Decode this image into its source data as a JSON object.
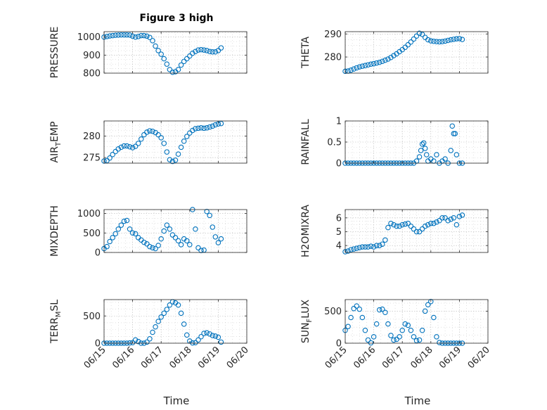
{
  "figure": {
    "title": "Figure 3 high",
    "xlabel": "Time"
  },
  "style": {
    "marker_color": "#0072bd",
    "axis_color": "#262626",
    "grid_color": "#b0b0b0"
  },
  "chart_data": [
    {
      "type": "scatter",
      "ylabel_main": "PRESSURE",
      "ylabel_sub": "",
      "xlim": [
        0,
        5
      ],
      "ylim": [
        800,
        1030
      ],
      "yticks": [
        800,
        900,
        1000
      ],
      "ytick_labels": [
        "800",
        "900",
        "1000"
      ],
      "xtick_labels": [
        "06/15",
        "06/16",
        "06/17",
        "06/18",
        "06/19",
        "06/20"
      ],
      "x": [
        0.0,
        0.1,
        0.2,
        0.3,
        0.4,
        0.5,
        0.6,
        0.7,
        0.8,
        0.9,
        1.0,
        1.1,
        1.2,
        1.3,
        1.4,
        1.5,
        1.6,
        1.7,
        1.8,
        1.9,
        2.0,
        2.1,
        2.2,
        2.3,
        2.4,
        2.5,
        2.6,
        2.7,
        2.8,
        2.9,
        3.0,
        3.1,
        3.2,
        3.3,
        3.4,
        3.5,
        3.6,
        3.7,
        3.8,
        3.9,
        4.0,
        4.1
      ],
      "y": [
        1000,
        1003,
        1006,
        1008,
        1010,
        1011,
        1012,
        1012,
        1012,
        1011,
        1005,
        1000,
        1003,
        1008,
        1008,
        1005,
        998,
        980,
        950,
        925,
        905,
        880,
        850,
        820,
        805,
        808,
        820,
        845,
        865,
        880,
        895,
        910,
        920,
        928,
        930,
        928,
        925,
        920,
        918,
        918,
        925,
        940
      ]
    },
    {
      "type": "scatter",
      "ylabel_main": "THETA",
      "ylabel_sub": "",
      "xlim": [
        0,
        5
      ],
      "ylim": [
        273,
        291
      ],
      "yticks": [
        280,
        290
      ],
      "ytick_labels": [
        "280",
        "290"
      ],
      "xtick_labels": [
        "06/15",
        "06/16",
        "06/17",
        "06/18",
        "06/19",
        "06/20"
      ],
      "x": [
        0.0,
        0.1,
        0.2,
        0.3,
        0.4,
        0.5,
        0.6,
        0.7,
        0.8,
        0.9,
        1.0,
        1.1,
        1.2,
        1.3,
        1.4,
        1.5,
        1.6,
        1.7,
        1.8,
        1.9,
        2.0,
        2.1,
        2.2,
        2.3,
        2.4,
        2.5,
        2.6,
        2.7,
        2.8,
        2.9,
        3.0,
        3.1,
        3.2,
        3.3,
        3.4,
        3.5,
        3.6,
        3.7,
        3.8,
        3.9,
        4.0,
        4.1
      ],
      "y": [
        273.8,
        273.9,
        274.3,
        274.8,
        275.3,
        275.7,
        276.0,
        276.3,
        276.6,
        276.9,
        277.1,
        277.4,
        277.7,
        278.1,
        278.6,
        279.1,
        279.8,
        280.6,
        281.4,
        282.3,
        283.2,
        284.2,
        285.3,
        286.5,
        287.8,
        289.1,
        290.3,
        289.8,
        288.5,
        287.5,
        287.0,
        286.8,
        286.7,
        286.6,
        286.7,
        286.9,
        287.2,
        287.5,
        287.7,
        287.9,
        288.0,
        287.6
      ]
    },
    {
      "type": "scatter",
      "ylabel_main": "AIR",
      "ylabel_sub": "T",
      "ylabel_tail": "EMP",
      "xlim": [
        0,
        5
      ],
      "ylim": [
        273.7,
        283.5
      ],
      "yticks": [
        275,
        280
      ],
      "ytick_labels": [
        "275",
        "280"
      ],
      "xtick_labels": [
        "06/15",
        "06/16",
        "06/17",
        "06/18",
        "06/19",
        "06/20"
      ],
      "x": [
        0.0,
        0.1,
        0.2,
        0.3,
        0.4,
        0.5,
        0.6,
        0.7,
        0.8,
        0.9,
        1.0,
        1.1,
        1.2,
        1.3,
        1.4,
        1.5,
        1.6,
        1.7,
        1.8,
        1.9,
        2.0,
        2.1,
        2.2,
        2.3,
        2.4,
        2.5,
        2.6,
        2.7,
        2.8,
        2.9,
        3.0,
        3.1,
        3.2,
        3.3,
        3.4,
        3.5,
        3.6,
        3.7,
        3.8,
        3.9,
        4.0,
        4.1
      ],
      "y": [
        274.2,
        274.3,
        274.9,
        275.7,
        276.4,
        277.0,
        277.4,
        277.7,
        277.7,
        277.5,
        277.3,
        277.6,
        278.3,
        279.3,
        280.3,
        280.9,
        281.2,
        281.1,
        280.8,
        280.3,
        279.6,
        278.3,
        276.3,
        274.5,
        274.1,
        274.4,
        275.8,
        277.4,
        278.8,
        279.9,
        280.7,
        281.3,
        281.7,
        281.8,
        281.9,
        281.8,
        281.9,
        282.1,
        282.3,
        282.6,
        282.8,
        282.9
      ]
    },
    {
      "type": "scatter",
      "ylabel_main": "RAINFALL",
      "ylabel_sub": "",
      "xlim": [
        0,
        5
      ],
      "ylim": [
        0,
        1
      ],
      "yticks": [
        0,
        0.5,
        1
      ],
      "ytick_labels": [
        "0",
        "0.5",
        "1"
      ],
      "xtick_labels": [
        "06/15",
        "06/16",
        "06/17",
        "06/18",
        "06/19",
        "06/20"
      ],
      "x": [
        0.0,
        0.1,
        0.2,
        0.3,
        0.4,
        0.5,
        0.6,
        0.7,
        0.8,
        0.9,
        1.0,
        1.1,
        1.2,
        1.3,
        1.4,
        1.5,
        1.6,
        1.7,
        1.8,
        1.9,
        2.0,
        2.1,
        2.2,
        2.3,
        2.4,
        2.5,
        2.6,
        2.65,
        2.7,
        2.75,
        2.8,
        2.85,
        2.9,
        3.0,
        3.1,
        3.2,
        3.3,
        3.4,
        3.5,
        3.6,
        3.7,
        3.75,
        3.8,
        3.85,
        3.9,
        4.0,
        4.1
      ],
      "y": [
        0,
        0,
        0,
        0,
        0,
        0,
        0,
        0,
        0,
        0,
        0,
        0,
        0,
        0,
        0,
        0,
        0,
        0,
        0,
        0,
        0,
        0,
        0,
        0,
        0,
        0.05,
        0.15,
        0.3,
        0.45,
        0.48,
        0.35,
        0.2,
        0.05,
        0.1,
        0.05,
        0.2,
        0,
        0.05,
        0.1,
        0,
        0.3,
        0.88,
        0.7,
        0.7,
        0.2,
        0,
        0
      ]
    },
    {
      "type": "scatter",
      "ylabel_main": "MIXDEPTH",
      "ylabel_sub": "",
      "xlim": [
        0,
        5
      ],
      "ylim": [
        0,
        1100
      ],
      "yticks": [
        0,
        500,
        1000
      ],
      "ytick_labels": [
        "0",
        "500",
        "1000"
      ],
      "xtick_labels": [
        "06/15",
        "06/16",
        "06/17",
        "06/18",
        "06/19",
        "06/20"
      ],
      "x": [
        0.0,
        0.1,
        0.2,
        0.3,
        0.4,
        0.5,
        0.6,
        0.7,
        0.8,
        0.9,
        1.0,
        1.1,
        1.2,
        1.3,
        1.4,
        1.5,
        1.6,
        1.7,
        1.8,
        1.9,
        2.0,
        2.1,
        2.2,
        2.3,
        2.4,
        2.5,
        2.6,
        2.7,
        2.8,
        2.9,
        3.0,
        3.1,
        3.2,
        3.3,
        3.4,
        3.5,
        3.6,
        3.7,
        3.8,
        3.9,
        4.0,
        4.1
      ],
      "y": [
        100,
        150,
        280,
        380,
        480,
        600,
        700,
        800,
        820,
        600,
        500,
        480,
        380,
        320,
        260,
        220,
        150,
        120,
        100,
        180,
        350,
        550,
        700,
        600,
        450,
        380,
        300,
        200,
        350,
        300,
        200,
        1100,
        600,
        120,
        50,
        60,
        1050,
        950,
        650,
        400,
        250,
        350
      ]
    },
    {
      "type": "scatter",
      "ylabel_main": "H2OMIXRA",
      "ylabel_sub": "",
      "xlim": [
        0,
        5
      ],
      "ylim": [
        3.5,
        6.6
      ],
      "yticks": [
        4,
        5,
        6
      ],
      "ytick_labels": [
        "4",
        "5",
        "6"
      ],
      "xtick_labels": [
        "06/15",
        "06/16",
        "06/17",
        "06/18",
        "06/19",
        "06/20"
      ],
      "x": [
        0.0,
        0.1,
        0.2,
        0.3,
        0.4,
        0.5,
        0.6,
        0.7,
        0.8,
        0.9,
        1.0,
        1.1,
        1.2,
        1.3,
        1.4,
        1.5,
        1.6,
        1.7,
        1.8,
        1.9,
        2.0,
        2.1,
        2.2,
        2.3,
        2.4,
        2.5,
        2.6,
        2.7,
        2.8,
        2.9,
        3.0,
        3.1,
        3.2,
        3.3,
        3.4,
        3.5,
        3.6,
        3.7,
        3.8,
        3.9,
        4.0,
        4.1
      ],
      "y": [
        3.55,
        3.6,
        3.7,
        3.75,
        3.8,
        3.85,
        3.9,
        3.9,
        3.9,
        3.95,
        3.9,
        4.0,
        4.0,
        4.1,
        4.4,
        5.3,
        5.6,
        5.5,
        5.4,
        5.4,
        5.5,
        5.55,
        5.6,
        5.4,
        5.2,
        5.0,
        5.0,
        5.2,
        5.4,
        5.5,
        5.6,
        5.6,
        5.7,
        5.8,
        6.0,
        6.0,
        5.8,
        5.9,
        6.0,
        5.5,
        6.1,
        6.2
      ]
    },
    {
      "type": "scatter",
      "ylabel_main": "TERR",
      "ylabel_sub": "M",
      "ylabel_tail": "SL",
      "xlim": [
        0,
        5
      ],
      "ylim": [
        0,
        800
      ],
      "yticks": [
        0,
        500
      ],
      "ytick_labels": [
        "0",
        "500"
      ],
      "xtick_labels": [
        "06/15",
        "06/16",
        "06/17",
        "06/18",
        "06/19",
        "06/20"
      ],
      "x": [
        0.0,
        0.1,
        0.2,
        0.3,
        0.4,
        0.5,
        0.6,
        0.7,
        0.8,
        0.9,
        1.0,
        1.1,
        1.2,
        1.3,
        1.4,
        1.5,
        1.6,
        1.7,
        1.8,
        1.9,
        2.0,
        2.1,
        2.2,
        2.3,
        2.4,
        2.5,
        2.6,
        2.7,
        2.8,
        2.9,
        3.0,
        3.1,
        3.2,
        3.3,
        3.4,
        3.5,
        3.6,
        3.7,
        3.8,
        3.9,
        4.0,
        4.1
      ],
      "y": [
        0,
        0,
        0,
        0,
        0,
        0,
        0,
        0,
        0,
        5,
        10,
        60,
        30,
        0,
        0,
        20,
        80,
        200,
        300,
        400,
        480,
        550,
        620,
        700,
        760,
        740,
        700,
        550,
        350,
        150,
        40,
        5,
        10,
        60,
        120,
        180,
        190,
        170,
        140,
        130,
        110,
        20
      ]
    },
    {
      "type": "scatter",
      "ylabel_main": "SUN",
      "ylabel_sub": "F",
      "ylabel_tail": "LUX",
      "xlim": [
        0,
        5
      ],
      "ylim": [
        0,
        680
      ],
      "yticks": [
        0,
        500
      ],
      "ytick_labels": [
        "0",
        "500"
      ],
      "xtick_labels": [
        "06/15",
        "06/16",
        "06/17",
        "06/18",
        "06/19",
        "06/20"
      ],
      "x": [
        0.0,
        0.1,
        0.2,
        0.3,
        0.4,
        0.5,
        0.6,
        0.7,
        0.8,
        0.9,
        1.0,
        1.1,
        1.2,
        1.3,
        1.4,
        1.5,
        1.6,
        1.7,
        1.8,
        1.9,
        2.0,
        2.1,
        2.2,
        2.3,
        2.4,
        2.5,
        2.6,
        2.7,
        2.8,
        2.9,
        3.0,
        3.1,
        3.2,
        3.3,
        3.4,
        3.5,
        3.6,
        3.7,
        3.8,
        3.9,
        4.0,
        4.1
      ],
      "y": [
        200,
        260,
        400,
        540,
        580,
        530,
        400,
        200,
        50,
        5,
        100,
        300,
        520,
        530,
        480,
        300,
        120,
        50,
        60,
        100,
        200,
        300,
        280,
        200,
        100,
        40,
        50,
        200,
        500,
        600,
        650,
        400,
        100,
        10,
        0,
        0,
        0,
        0,
        0,
        0,
        0,
        0
      ]
    }
  ]
}
